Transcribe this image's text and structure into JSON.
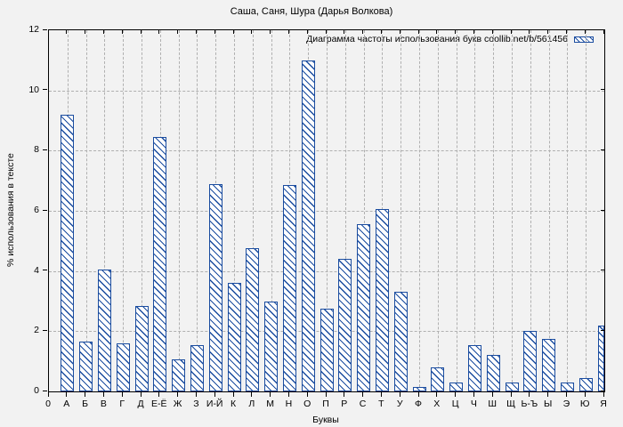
{
  "figure": {
    "background": "#f2f2f2",
    "frame_color": "#000000",
    "grid_color": "#b0b0b0"
  },
  "chart_data": {
    "type": "bar",
    "title": "Саша, Саня, Шура (Дарья Волкова)",
    "legend_label": "Диаграмма частоты использования букв coollib.net/b/561456",
    "legend_position": "top-right",
    "xlabel": "Буквы",
    "ylabel": "% использования в тексте",
    "x_origin_label": "0",
    "ylim": [
      0,
      12
    ],
    "yticks": [
      0,
      2,
      4,
      6,
      8,
      10,
      12
    ],
    "grid": true,
    "bar_color": "#1a4c9f",
    "categories": [
      "А",
      "Б",
      "В",
      "Г",
      "Д",
      "Е-Ё",
      "Ж",
      "З",
      "И-Й",
      "К",
      "Л",
      "М",
      "Н",
      "О",
      "П",
      "Р",
      "С",
      "Т",
      "У",
      "Ф",
      "Х",
      "Ц",
      "Ч",
      "Ш",
      "Щ",
      "Ь-Ъ",
      "Ы",
      "Э",
      "Ю",
      "Я"
    ],
    "values": [
      9.2,
      1.65,
      4.05,
      1.6,
      2.85,
      8.45,
      1.05,
      1.55,
      6.9,
      3.6,
      4.75,
      3.0,
      6.85,
      11.0,
      2.75,
      4.4,
      5.55,
      6.05,
      3.3,
      0.15,
      0.8,
      0.3,
      1.55,
      1.2,
      0.3,
      2.0,
      1.75,
      0.3,
      0.45,
      2.2
    ]
  }
}
